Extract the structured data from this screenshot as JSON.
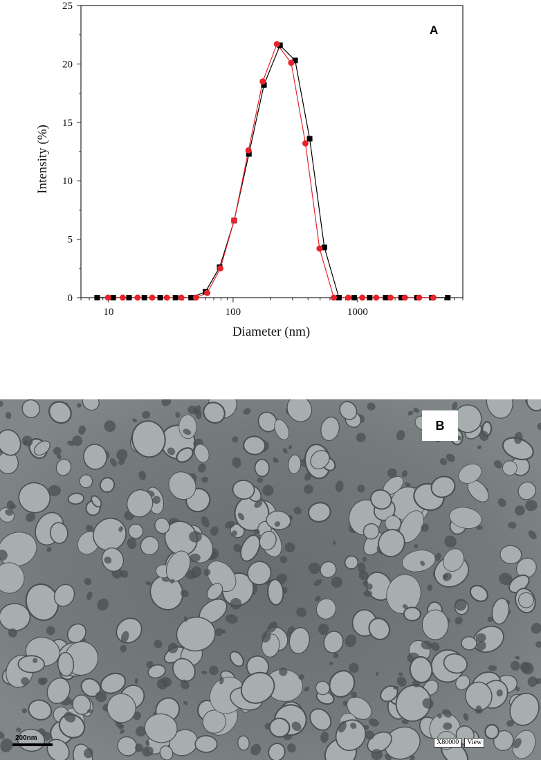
{
  "panel_a": {
    "label": "A"
  },
  "panel_b": {
    "label": "B",
    "scale_bar_label": "200nm",
    "magnification": "X80000",
    "mode": "View"
  },
  "colors": {
    "series_black": "#000000",
    "series_red": "#e8232b"
  },
  "chart_data": {
    "type": "line",
    "title": "",
    "xlabel": "Diameter (nm)",
    "ylabel": "Intensity (%)",
    "xscale": "log",
    "xlim": [
      6,
      7000
    ],
    "ylim": [
      0,
      25
    ],
    "xticks": [
      10,
      100,
      1000
    ],
    "xtick_labels": [
      "10",
      "100",
      "1000"
    ],
    "yticks": [
      0,
      5,
      10,
      15,
      20,
      25
    ],
    "ytick_labels": [
      "0",
      "5",
      "10",
      "15",
      "20",
      "25"
    ],
    "grid": false,
    "legend": "none",
    "series": [
      {
        "color": "#000000",
        "marker": "square",
        "points": [
          [
            8.1,
            0
          ],
          [
            10.9,
            0
          ],
          [
            14.6,
            0
          ],
          [
            19.4,
            0
          ],
          [
            26.0,
            0
          ],
          [
            34.5,
            0
          ],
          [
            46.0,
            0
          ],
          [
            60.0,
            0.5
          ],
          [
            78.0,
            2.6
          ],
          [
            102.0,
            6.6
          ],
          [
            134.0,
            12.3
          ],
          [
            177.0,
            18.2
          ],
          [
            238.0,
            21.6
          ],
          [
            315.0,
            20.3
          ],
          [
            412.0,
            13.6
          ],
          [
            541.0,
            4.3
          ],
          [
            708.0,
            0
          ],
          [
            940.0,
            0
          ],
          [
            1250.0,
            0
          ],
          [
            1680.0,
            0
          ],
          [
            2240.0,
            0
          ],
          [
            3000.0,
            0
          ],
          [
            3950.0,
            0
          ],
          [
            5300.0,
            0
          ]
        ]
      },
      {
        "color": "#e8232b",
        "marker": "circle",
        "points": [
          [
            9.9,
            0
          ],
          [
            13.0,
            0
          ],
          [
            17.1,
            0
          ],
          [
            22.4,
            0
          ],
          [
            29.4,
            0
          ],
          [
            38.4,
            0
          ],
          [
            50.3,
            0
          ],
          [
            62.0,
            0.4
          ],
          [
            79.0,
            2.5
          ],
          [
            102.0,
            6.6
          ],
          [
            133.0,
            12.6
          ],
          [
            173.0,
            18.5
          ],
          [
            225.0,
            21.7
          ],
          [
            293.0,
            20.1
          ],
          [
            381.0,
            13.2
          ],
          [
            495.0,
            4.2
          ],
          [
            644.0,
            0
          ],
          [
            840.0,
            0
          ],
          [
            1090.0,
            0
          ],
          [
            1410.0,
            0
          ],
          [
            1840.0,
            0
          ],
          [
            2400.0,
            0
          ],
          [
            3120.0,
            0
          ],
          [
            4060.0,
            0
          ]
        ]
      }
    ]
  }
}
